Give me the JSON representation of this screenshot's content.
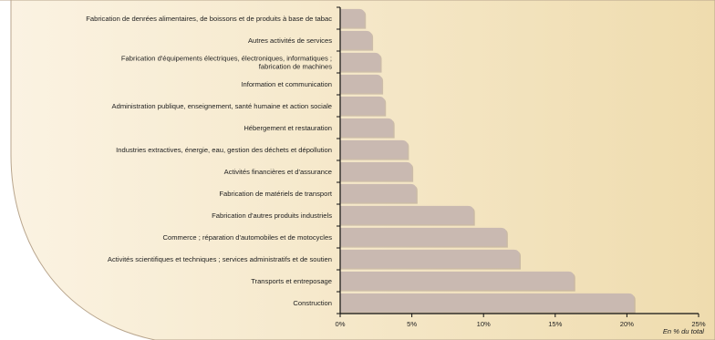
{
  "chart_data": {
    "type": "bar",
    "orientation": "horizontal",
    "categories": [
      [
        "Fabrication de denrées alimentaires, de boissons et  de produits à base de tabac"
      ],
      [
        "Autres activités de services"
      ],
      [
        "Fabrication d'équipements électriques, électroniques, informatiques ;",
        "fabrication de machines"
      ],
      [
        "Information et communication"
      ],
      [
        "Administration publique, enseignement, santé humaine et action sociale"
      ],
      [
        "Hébergement et restauration"
      ],
      [
        "Industries extractives,  énergie, eau, gestion des déchets et dépollution"
      ],
      [
        "Activités financières et d'assurance"
      ],
      [
        "Fabrication de matériels de transport"
      ],
      [
        "Fabrication d'autres produits industriels"
      ],
      [
        "Commerce ; réparation d'automobiles et de motocycles"
      ],
      [
        "Activités scientifiques et techniques ; services administratifs et de soutien"
      ],
      [
        "Transports et entreposage"
      ],
      [
        "Construction"
      ]
    ],
    "values": [
      1.7,
      2.2,
      2.8,
      2.9,
      3.1,
      3.7,
      4.7,
      5.0,
      5.3,
      9.3,
      11.6,
      12.5,
      16.3,
      20.5
    ],
    "xlim": [
      0,
      25
    ],
    "x_ticks": [
      "0%",
      "5%",
      "10%",
      "15%",
      "20%",
      "25%"
    ],
    "unit_label": "En % du total",
    "grid": false,
    "colors": {
      "bar": "#c9b9b1",
      "bar_shadow": "#a9998f",
      "axis": "#111111",
      "panel_light": "#fbf3e3",
      "panel_dark": "#efdcae",
      "panel_border": "#b8a58d"
    }
  }
}
